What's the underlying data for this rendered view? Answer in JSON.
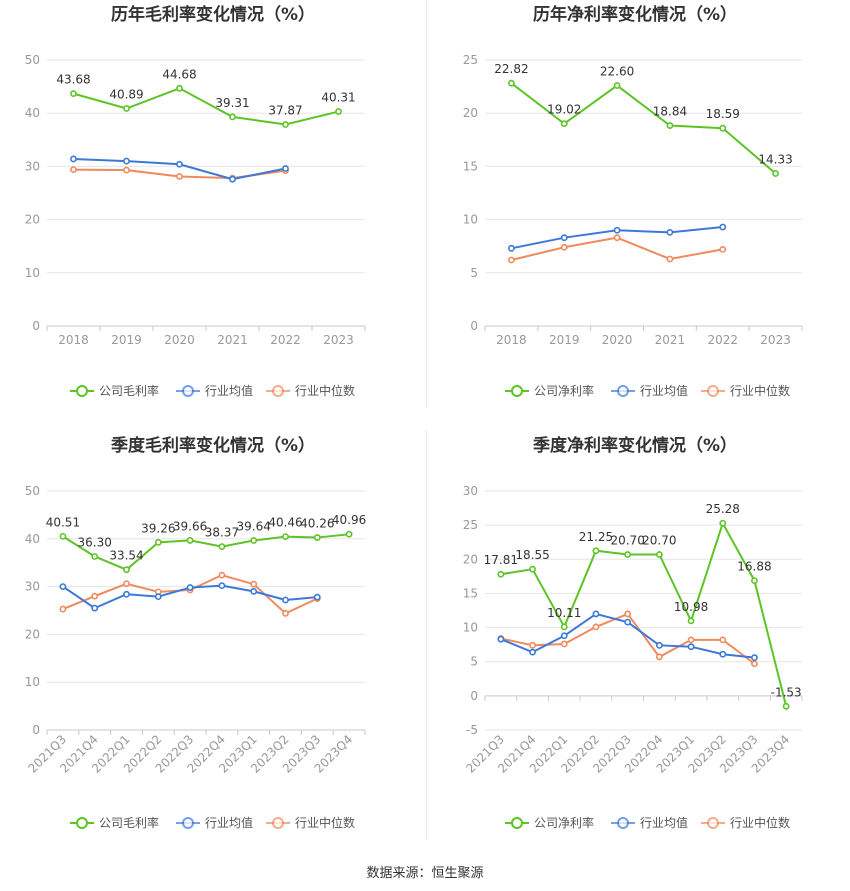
{
  "colors": {
    "company": "#5cc425",
    "industry_avg": "#3c78d8",
    "industry_median": "#f08a5d",
    "axis": "#999999",
    "grid": "#e5e5e5"
  },
  "legend_icon": "line-circle-icon",
  "source": "数据来源：恒生聚源",
  "chart_data": [
    {
      "type": "line",
      "title": "历年毛利率变化情况（%）",
      "categories": [
        "2018",
        "2019",
        "2020",
        "2021",
        "2022",
        "2023"
      ],
      "ylim": [
        0,
        50
      ],
      "yticks": [
        0,
        10,
        20,
        30,
        40,
        50
      ],
      "grid": true,
      "legend_position": "bottom",
      "rotate_x_labels": false,
      "series": [
        {
          "name": "公司毛利率",
          "values": [
            43.68,
            40.89,
            44.68,
            39.31,
            37.87,
            40.31
          ],
          "labels": [
            "43.68",
            "40.89",
            "44.68",
            "39.31",
            "37.87",
            "40.31"
          ]
        },
        {
          "name": "行业均值",
          "values": [
            31.4,
            31.0,
            30.4,
            27.6,
            29.6,
            null
          ]
        },
        {
          "name": "行业中位数",
          "values": [
            29.4,
            29.3,
            28.1,
            27.8,
            29.2,
            null
          ]
        }
      ]
    },
    {
      "type": "line",
      "title": "历年净利率变化情况（%）",
      "categories": [
        "2018",
        "2019",
        "2020",
        "2021",
        "2022",
        "2023"
      ],
      "ylim": [
        0,
        25
      ],
      "yticks": [
        0,
        5,
        10,
        15,
        20,
        25
      ],
      "grid": true,
      "legend_position": "bottom",
      "rotate_x_labels": false,
      "series": [
        {
          "name": "公司净利率",
          "values": [
            22.82,
            19.02,
            22.6,
            18.84,
            18.59,
            14.33
          ],
          "labels": [
            "22.82",
            "19.02",
            "22.60",
            "18.84",
            "18.59",
            "14.33"
          ]
        },
        {
          "name": "行业均值",
          "values": [
            7.3,
            8.3,
            9.0,
            8.8,
            9.3,
            null
          ]
        },
        {
          "name": "行业中位数",
          "values": [
            6.2,
            7.4,
            8.3,
            6.3,
            7.2,
            null
          ]
        }
      ]
    },
    {
      "type": "line",
      "title": "季度毛利率变化情况（%）",
      "categories": [
        "2021Q3",
        "2021Q4",
        "2022Q1",
        "2022Q2",
        "2022Q3",
        "2022Q4",
        "2023Q1",
        "2023Q2",
        "2023Q3",
        "2023Q4"
      ],
      "ylim": [
        0,
        50
      ],
      "yticks": [
        0,
        10,
        20,
        30,
        40,
        50
      ],
      "grid": true,
      "legend_position": "bottom",
      "rotate_x_labels": true,
      "series": [
        {
          "name": "公司毛利率",
          "values": [
            40.51,
            36.3,
            33.54,
            39.26,
            39.66,
            38.37,
            39.64,
            40.46,
            40.26,
            40.96
          ],
          "labels": [
            "40.51",
            "36.30",
            "33.54",
            "39.26",
            "39.66",
            "38.37",
            "39.64",
            "40.46",
            "40.26",
            "40.96"
          ]
        },
        {
          "name": "行业均值",
          "values": [
            30.0,
            25.5,
            28.4,
            27.9,
            29.8,
            30.2,
            29.0,
            27.2,
            27.8,
            null
          ]
        },
        {
          "name": "行业中位数",
          "values": [
            25.3,
            28.0,
            30.6,
            28.9,
            29.3,
            32.4,
            30.5,
            24.4,
            27.5,
            null
          ]
        }
      ]
    },
    {
      "type": "line",
      "title": "季度净利率变化情况（%）",
      "categories": [
        "2021Q3",
        "2021Q4",
        "2022Q1",
        "2022Q2",
        "2022Q3",
        "2022Q4",
        "2023Q1",
        "2023Q2",
        "2023Q3",
        "2023Q4"
      ],
      "ylim": [
        -5,
        30
      ],
      "yticks": [
        -5,
        0,
        5,
        10,
        15,
        20,
        25,
        30
      ],
      "grid": true,
      "legend_position": "bottom",
      "rotate_x_labels": true,
      "series": [
        {
          "name": "公司净利率",
          "values": [
            17.81,
            18.55,
            10.11,
            21.25,
            20.7,
            20.7,
            10.98,
            25.28,
            16.88,
            -1.53
          ],
          "labels": [
            "17.81",
            "18.55",
            "10.11",
            "21.25",
            "20.70",
            "20.70",
            "10.98",
            "25.28",
            "16.88",
            "-1.53"
          ]
        },
        {
          "name": "行业均值",
          "values": [
            8.3,
            6.4,
            8.8,
            12.0,
            10.8,
            7.4,
            7.2,
            6.1,
            5.6,
            null
          ]
        },
        {
          "name": "行业中位数",
          "values": [
            8.4,
            7.4,
            7.6,
            10.1,
            12.0,
            5.7,
            8.2,
            8.2,
            4.7,
            null
          ]
        }
      ]
    }
  ]
}
